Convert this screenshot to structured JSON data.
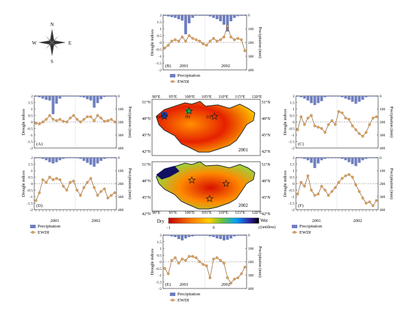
{
  "colors": {
    "precip_bar": "#6f7fbf",
    "ewdi_line": "#9a6a3a",
    "ewdi_marker_fill": "#e8a85a",
    "map_outline": "#222222"
  },
  "compass": {
    "n": "N",
    "s": "S",
    "e": "E",
    "w": "W"
  },
  "legend": {
    "precip": "Precipitation",
    "ewdi": "EWDI"
  },
  "axis_text": {
    "left": "Drought indices",
    "right": "Precipitation (mm)",
    "left_ticks": [
      "2",
      "1.5",
      "1",
      "0.5",
      "0",
      "-0.5",
      "-1",
      "-1.5",
      "-2"
    ],
    "right_ticks": [
      "0",
      "100",
      "200",
      "300",
      "400"
    ]
  },
  "year_labels": [
    "2001",
    "2002"
  ],
  "map": {
    "lon_labels": [
      "90°E",
      "95°E",
      "100°E",
      "105°E",
      "110°E",
      "115°E",
      "120°E"
    ],
    "lat_labels": [
      "51°N",
      "48°N",
      "45°N",
      "42°N"
    ],
    "year_top": "2001",
    "year_bottom": "2002",
    "site_letters": [
      "(a)",
      "(b)",
      "(c)"
    ],
    "scale_left": "Dry",
    "scale_right": "Wet",
    "scale_unit": "(unitless)",
    "scale_min": "−1",
    "scale_mid": "0",
    "scale_max": "1"
  },
  "chart_data": [
    {
      "panel": "(A)",
      "type": "bar+line",
      "ylabel": "Drought indices",
      "y2label": "Precipitation (mm)",
      "ylim": [
        -2,
        2
      ],
      "y2lim": [
        0,
        400
      ],
      "precipitation": [
        5,
        10,
        20,
        30,
        35,
        140,
        60,
        20,
        5,
        5,
        5,
        5,
        5,
        8,
        12,
        25,
        35,
        90,
        55,
        25,
        8,
        5,
        5,
        5
      ],
      "ewdi": [
        -0.1,
        -0.15,
        0,
        0.2,
        0.5,
        0.2,
        0.1,
        0.2,
        0.05,
        0,
        0.3,
        0.5,
        0.2,
        0,
        0.2,
        0.4,
        0.4,
        0.1,
        0.5,
        0.3,
        0.05,
        0.1,
        0.2,
        0
      ]
    },
    {
      "panel": "(B)",
      "type": "bar+line",
      "ylabel": "Drought indices",
      "y2label": "Precipitation (mm)",
      "ylim": [
        -2,
        2
      ],
      "y2lim": [
        0,
        400
      ],
      "precipitation": [
        5,
        10,
        15,
        20,
        30,
        40,
        140,
        60,
        20,
        5,
        5,
        5,
        5,
        10,
        20,
        30,
        45,
        70,
        120,
        45,
        20,
        8,
        5,
        5
      ],
      "ewdi": [
        -0.4,
        -0.2,
        0.1,
        0.2,
        0.1,
        0.4,
        0.1,
        0.5,
        0.3,
        0.2,
        0.1,
        -0.1,
        -0.2,
        0.1,
        0.3,
        0.1,
        0.2,
        0.4,
        1.2,
        0.4,
        0.2,
        0.3,
        0.2,
        -0.6
      ]
    },
    {
      "panel": "(C)",
      "type": "bar+line",
      "ylabel": "Drought indices",
      "y2label": "Precipitation (mm)",
      "ylim": [
        -2,
        2
      ],
      "y2lim": [
        0,
        400
      ],
      "precipitation": [
        5,
        10,
        20,
        35,
        55,
        70,
        55,
        40,
        10,
        5,
        5,
        5,
        5,
        10,
        20,
        30,
        45,
        60,
        45,
        30,
        10,
        5,
        5,
        5
      ],
      "ewdi": [
        -0.6,
        0.4,
        -0.2,
        0.3,
        0.5,
        -0.3,
        -0.4,
        -0.5,
        -0.8,
        -0.2,
        0.1,
        -0.2,
        0.8,
        0.7,
        0.3,
        0.2,
        -0.3,
        -0.6,
        -0.9,
        -1.1,
        -0.8,
        -0.2,
        0.3,
        0.4
      ]
    },
    {
      "panel": "(D)",
      "type": "bar+line",
      "ylabel": "Drought indices",
      "y2label": "Precipitation (mm)",
      "ylim": [
        -2,
        2
      ],
      "y2lim": [
        0,
        400
      ],
      "precipitation": [
        5,
        5,
        10,
        20,
        35,
        45,
        35,
        20,
        10,
        5,
        5,
        5,
        5,
        10,
        25,
        40,
        55,
        70,
        45,
        25,
        10,
        5,
        5,
        5
      ],
      "ewdi": [
        -1.3,
        -0.7,
        0.3,
        0.1,
        0.5,
        0.3,
        0.4,
        0.3,
        -0.2,
        -0.5,
        0.1,
        0.2,
        -0.5,
        -0.9,
        -0.3,
        0.1,
        0.4,
        -0.3,
        -0.9,
        -0.6,
        -0.4,
        -1.1,
        -0.9,
        -0.7
      ]
    },
    {
      "panel": "(E)",
      "type": "bar+line",
      "ylabel": "Drought indices",
      "y2label": "Precipitation (mm)",
      "ylim": [
        -2,
        2
      ],
      "y2lim": [
        0,
        400
      ],
      "precipitation": [
        5,
        5,
        10,
        15,
        30,
        40,
        25,
        15,
        10,
        5,
        5,
        5,
        5,
        10,
        15,
        25,
        30,
        40,
        35,
        25,
        10,
        5,
        5,
        5
      ],
      "ewdi": [
        -0.5,
        -0.9,
        0.1,
        0.3,
        -0.1,
        0.2,
        0.1,
        0.4,
        0.4,
        0.3,
        0,
        -0.2,
        -0.3,
        -1.2,
        0.2,
        0.3,
        0.1,
        -0.1,
        -1.2,
        -1.6,
        -1.3,
        -1.2,
        -0.9,
        -0.4
      ]
    },
    {
      "panel": "(F)",
      "type": "bar+line",
      "ylabel": "Drought indices",
      "y2label": "Precipitation (mm)",
      "ylim": [
        -2,
        2
      ],
      "y2lim": [
        0,
        400
      ],
      "precipitation": [
        5,
        5,
        10,
        20,
        40,
        80,
        45,
        20,
        10,
        5,
        5,
        5,
        5,
        10,
        20,
        35,
        50,
        65,
        40,
        20,
        10,
        5,
        5,
        5
      ],
      "ewdi": [
        -0.8,
        0.1,
        -0.2,
        0.6,
        -0.5,
        -0.9,
        -0.8,
        -0.2,
        -0.5,
        -0.9,
        -0.6,
        -0.3,
        0.1,
        0.4,
        0.6,
        0.7,
        0.5,
        -0.1,
        -0.6,
        -1.1,
        -1.5,
        -1.4,
        -1.7,
        -1.3
      ]
    }
  ]
}
